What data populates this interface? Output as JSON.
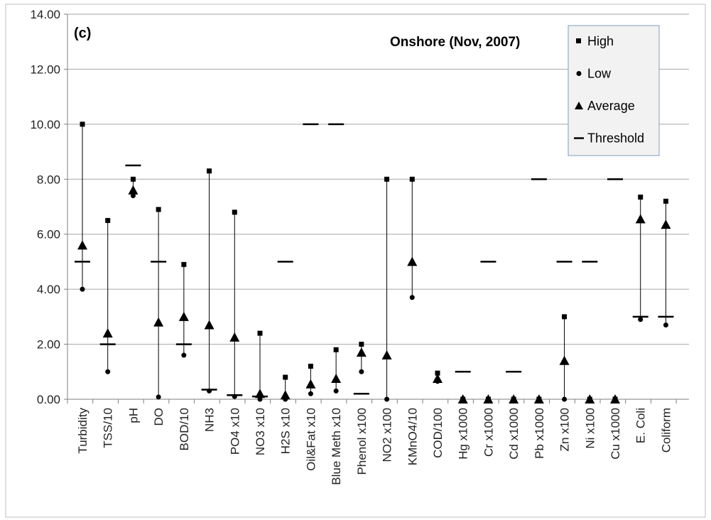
{
  "panel_label": "(c)",
  "title": "Onshore (Nov, 2007)",
  "legend": [
    {
      "key": "high",
      "label": "High",
      "marker": "square"
    },
    {
      "key": "low",
      "label": "Low",
      "marker": "circle"
    },
    {
      "key": "average",
      "label": "Average",
      "marker": "triangle"
    },
    {
      "key": "threshold",
      "label": "Threshold",
      "marker": "dash"
    }
  ],
  "y_ticks": [
    "0.00",
    "2.00",
    "4.00",
    "6.00",
    "8.00",
    "10.00",
    "12.00",
    "14.00"
  ],
  "chart_data": {
    "type": "scatter",
    "title": "Onshore (Nov, 2007)",
    "xlabel": "",
    "ylabel": "",
    "ylim": [
      0,
      14
    ],
    "grid": true,
    "legend_position": "top-right",
    "categories": [
      "Turbidity",
      "TSS/10",
      "pH",
      "DO",
      "BOD/10",
      "NH3",
      "PO4 x10",
      "NO3 x10",
      "H2S x10",
      "Oil&Fat x10",
      "Blue Meth x10",
      "Phenol x100",
      "NO2 x100",
      "KMnO4/10",
      "COD/100",
      "Hg x1000",
      "Cr x1000",
      "Cd x1000",
      "Pb x1000",
      "Zn x100",
      "Ni x100",
      "Cu x1000",
      "E. Coli",
      "Coliform"
    ],
    "series": [
      {
        "name": "High",
        "values": [
          10.0,
          6.5,
          8.0,
          6.9,
          4.9,
          8.3,
          6.8,
          2.4,
          0.8,
          1.2,
          1.8,
          2.0,
          8.0,
          8.0,
          0.95,
          0.0,
          0.0,
          0.0,
          0.0,
          3.0,
          0.0,
          0.0,
          7.35,
          7.2
        ]
      },
      {
        "name": "Low",
        "values": [
          4.0,
          1.0,
          7.4,
          0.08,
          1.6,
          0.3,
          0.1,
          0.0,
          0.0,
          0.2,
          0.3,
          1.0,
          0.0,
          3.7,
          0.65,
          0.0,
          0.0,
          0.0,
          0.0,
          0.0,
          0.0,
          0.0,
          2.9,
          2.7
        ]
      },
      {
        "name": "Average",
        "values": [
          5.6,
          2.4,
          7.6,
          2.8,
          3.0,
          2.7,
          2.25,
          0.2,
          0.15,
          0.55,
          0.75,
          1.7,
          1.6,
          5.0,
          0.75,
          0.0,
          0.0,
          0.0,
          0.0,
          1.4,
          0.0,
          0.0,
          6.55,
          6.35
        ]
      },
      {
        "name": "Threshold",
        "values": [
          5.0,
          2.0,
          8.5,
          5.0,
          2.0,
          0.35,
          0.15,
          0.1,
          5.0,
          10.0,
          10.0,
          0.2,
          null,
          null,
          null,
          1.0,
          5.0,
          1.0,
          8.0,
          5.0,
          5.0,
          8.0,
          3.0,
          3.0
        ]
      }
    ]
  }
}
